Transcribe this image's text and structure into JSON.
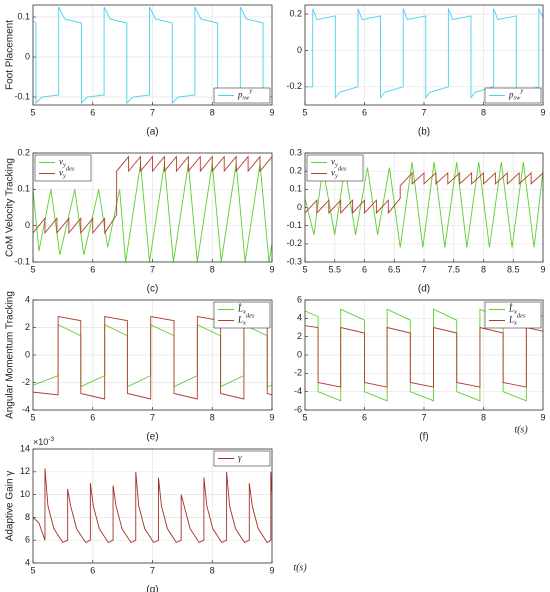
{
  "chart_data": [
    {
      "type": "line",
      "panel_label": "(a)",
      "y_label": "Foot Placement",
      "xlim": [
        5,
        9
      ],
      "ylim": [
        -0.12,
        0.13
      ],
      "xticks": [
        5,
        6,
        7,
        8,
        9
      ],
      "yticks": [
        -0.1,
        0,
        0.1
      ],
      "grid": true,
      "legend": "lower right",
      "series": [
        {
          "name": "p_sw^y",
          "color": "#49d2ee",
          "x": [
            5,
            5.05,
            5.05,
            5.15,
            5.43,
            5.43,
            5.53,
            5.81,
            5.81,
            5.91,
            6.19,
            6.19,
            6.29,
            6.57,
            6.57,
            6.67,
            6.95,
            6.95,
            7.05,
            7.33,
            7.33,
            7.43,
            7.71,
            7.71,
            7.81,
            8.09,
            8.09,
            8.19,
            8.47,
            8.47,
            8.57,
            8.85,
            8.85,
            8.95,
            9
          ],
          "values": [
            0.09,
            0.085,
            -0.115,
            -0.1,
            -0.095,
            0.125,
            0.095,
            0.085,
            -0.115,
            -0.1,
            -0.095,
            0.125,
            0.095,
            0.085,
            -0.115,
            -0.1,
            -0.095,
            0.125,
            0.095,
            0.085,
            -0.115,
            -0.1,
            -0.095,
            0.125,
            0.095,
            0.085,
            -0.115,
            -0.1,
            -0.095,
            0.125,
            0.095,
            0.085,
            -0.115,
            -0.1,
            -0.098
          ]
        }
      ]
    },
    {
      "type": "line",
      "panel_label": "(b)",
      "xlim": [
        5,
        9
      ],
      "ylim": [
        -0.3,
        0.25
      ],
      "xticks": [
        5,
        6,
        7,
        8,
        9
      ],
      "yticks": [
        -0.2,
        0,
        0.2
      ],
      "grid": true,
      "legend": "lower right",
      "series": [
        {
          "name": "p_sw^y",
          "color": "#49d2ee",
          "x": [
            5,
            5.13,
            5.13,
            5.2,
            5.51,
            5.51,
            5.58,
            5.89,
            5.89,
            5.96,
            6.27,
            6.27,
            6.34,
            6.65,
            6.65,
            6.72,
            7.03,
            7.03,
            7.1,
            7.41,
            7.41,
            7.48,
            7.79,
            7.79,
            7.86,
            8.17,
            8.17,
            8.24,
            8.55,
            8.55,
            8.62,
            8.93,
            8.93,
            9
          ],
          "values": [
            -0.2,
            -0.2,
            0.23,
            0.17,
            0.19,
            -0.26,
            -0.23,
            -0.2,
            0.23,
            0.17,
            0.19,
            -0.26,
            -0.23,
            -0.2,
            0.23,
            0.17,
            0.19,
            -0.26,
            -0.23,
            -0.2,
            0.23,
            0.17,
            0.19,
            -0.26,
            -0.23,
            -0.2,
            0.23,
            0.17,
            0.19,
            -0.26,
            -0.23,
            -0.2,
            0.23,
            0.18
          ]
        }
      ]
    },
    {
      "type": "line",
      "panel_label": "(c)",
      "y_label": "CoM Velocity Tracking",
      "xlim": [
        5,
        9
      ],
      "ylim": [
        -0.1,
        0.2
      ],
      "xticks": [
        5,
        6,
        7,
        8,
        9
      ],
      "yticks": [
        -0.1,
        0,
        0.1,
        0.2
      ],
      "grid": true,
      "legend": "upper left",
      "series": [
        {
          "name": "v_y",
          "color": "#5ccf2c",
          "x": [
            5,
            5.1,
            5.3,
            5.45,
            5.7,
            5.85,
            6.1,
            6.25,
            6.45,
            6.55,
            6.8,
            6.95,
            7.2,
            7.35,
            7.6,
            7.75,
            8.0,
            8.15,
            8.4,
            8.55,
            8.8,
            8.95,
            9
          ],
          "values": [
            0.1,
            -0.07,
            0.1,
            -0.08,
            0.1,
            -0.08,
            0.1,
            -0.06,
            0.1,
            -0.1,
            0.17,
            -0.1,
            0.17,
            -0.1,
            0.17,
            -0.1,
            0.17,
            -0.1,
            0.17,
            -0.1,
            0.17,
            -0.1,
            -0.05
          ]
        },
        {
          "name": "v_y^des",
          "color": "#b23b2b",
          "x": [
            5,
            5.2,
            5.2,
            5.4,
            5.4,
            5.6,
            5.6,
            5.8,
            5.8,
            6.0,
            6.0,
            6.2,
            6.2,
            6.4,
            6.4,
            6.6,
            6.6,
            6.8,
            6.8,
            7.0,
            7.0,
            7.2,
            7.2,
            7.4,
            7.4,
            7.6,
            7.6,
            7.8,
            7.8,
            8.0,
            8.0,
            8.2,
            8.2,
            8.4,
            8.4,
            8.6,
            8.6,
            8.8,
            8.8,
            9.0
          ],
          "values": [
            -0.02,
            0.02,
            -0.02,
            0.02,
            -0.02,
            0.02,
            -0.02,
            0.02,
            -0.02,
            0.02,
            -0.02,
            0.02,
            -0.02,
            0.03,
            0.15,
            0.19,
            0.15,
            0.19,
            0.15,
            0.19,
            0.15,
            0.19,
            0.15,
            0.19,
            0.15,
            0.19,
            0.15,
            0.19,
            0.15,
            0.19,
            0.15,
            0.19,
            0.15,
            0.19,
            0.15,
            0.19,
            0.15,
            0.19,
            0.15,
            0.19
          ]
        }
      ]
    },
    {
      "type": "line",
      "panel_label": "(d)",
      "xlim": [
        5,
        9
      ],
      "ylim": [
        -0.3,
        0.3
      ],
      "xticks": [
        5,
        5.5,
        6,
        6.5,
        7,
        7.5,
        8,
        8.5,
        9
      ],
      "yticks": [
        -0.3,
        -0.2,
        -0.1,
        0,
        0.1,
        0.2,
        0.3
      ],
      "grid": true,
      "legend": "upper left",
      "series": [
        {
          "name": "v_y",
          "color": "#5ccf2c",
          "x": [
            5,
            5.15,
            5.3,
            5.5,
            5.67,
            5.85,
            6.05,
            6.22,
            6.42,
            6.6,
            6.8,
            6.98,
            7.17,
            7.35,
            7.55,
            7.72,
            7.92,
            8.1,
            8.3,
            8.48,
            8.67,
            8.85,
            9
          ],
          "values": [
            0.05,
            -0.15,
            0.22,
            -0.15,
            0.22,
            -0.15,
            0.22,
            -0.15,
            0.22,
            -0.22,
            0.25,
            -0.22,
            0.25,
            -0.22,
            0.25,
            -0.22,
            0.25,
            -0.22,
            0.25,
            -0.22,
            0.25,
            -0.22,
            0.2
          ]
        },
        {
          "name": "v_y^des",
          "color": "#b23b2b",
          "x": [
            5,
            5.2,
            5.2,
            5.4,
            5.4,
            5.6,
            5.6,
            5.8,
            5.8,
            6.0,
            6.0,
            6.2,
            6.2,
            6.4,
            6.4,
            6.6,
            6.6,
            6.8,
            6.8,
            7.0,
            7.0,
            7.2,
            7.2,
            7.4,
            7.4,
            7.6,
            7.6,
            7.8,
            7.8,
            8.0,
            8.0,
            8.2,
            8.2,
            8.4,
            8.4,
            8.6,
            8.6,
            8.8,
            8.8,
            9.0
          ],
          "values": [
            -0.03,
            0.04,
            -0.03,
            0.04,
            -0.03,
            0.04,
            -0.03,
            0.04,
            -0.03,
            0.04,
            -0.03,
            0.04,
            -0.03,
            0.04,
            -0.03,
            0.05,
            0.12,
            0.19,
            0.13,
            0.19,
            0.13,
            0.19,
            0.13,
            0.19,
            0.13,
            0.19,
            0.13,
            0.19,
            0.13,
            0.19,
            0.13,
            0.19,
            0.13,
            0.19,
            0.13,
            0.19,
            0.13,
            0.19,
            0.13,
            0.19
          ]
        }
      ]
    },
    {
      "type": "line",
      "panel_label": "(e)",
      "y_label": "Angular Momentum Tracking",
      "xlim": [
        5,
        9
      ],
      "ylim": [
        -4,
        4
      ],
      "xticks": [
        5,
        6,
        7,
        8,
        9
      ],
      "yticks": [
        -4,
        -2,
        0,
        2,
        4
      ],
      "grid": true,
      "legend": "upper right",
      "series": [
        {
          "name": "L̂_x",
          "color": "#5ccf2c",
          "x": [
            5,
            5.42,
            5.42,
            5.8,
            5.8,
            6.2,
            6.2,
            6.58,
            6.58,
            6.97,
            6.97,
            7.36,
            7.36,
            7.75,
            7.75,
            8.14,
            8.14,
            8.53,
            8.53,
            8.92,
            8.92,
            9
          ],
          "values": [
            -2.2,
            -1.5,
            2.2,
            1.4,
            -2.3,
            -1.5,
            2.2,
            1.4,
            -2.3,
            -1.5,
            2.2,
            1.4,
            -2.3,
            -1.5,
            2.2,
            1.4,
            -2.3,
            -1.5,
            2.2,
            1.4,
            -2.3,
            -2.2
          ]
        },
        {
          "name": "L_x^des",
          "color": "#b23b2b",
          "x": [
            5,
            5.42,
            5.42,
            5.8,
            5.8,
            6.2,
            6.2,
            6.58,
            6.58,
            6.97,
            6.97,
            7.36,
            7.36,
            7.75,
            7.75,
            8.14,
            8.14,
            8.53,
            8.53,
            8.92,
            8.92,
            9
          ],
          "values": [
            -2.7,
            -2.9,
            2.8,
            2.5,
            -2.8,
            -3.2,
            2.8,
            2.5,
            -2.8,
            -3.2,
            2.8,
            2.5,
            -2.8,
            -3.2,
            2.8,
            2.5,
            -2.8,
            -3.2,
            2.8,
            2.5,
            -2.8,
            -2.9
          ]
        }
      ]
    },
    {
      "type": "line",
      "panel_label": "(f)",
      "x_label": "t(s)",
      "xlim": [
        5,
        9
      ],
      "ylim": [
        -6,
        6
      ],
      "xticks": [
        5,
        6,
        7,
        8,
        9
      ],
      "yticks": [
        -6,
        -4,
        -2,
        0,
        2,
        4,
        6
      ],
      "grid": true,
      "legend": "upper right",
      "series": [
        {
          "name": "L̂_x",
          "color": "#5ccf2c",
          "x": [
            5,
            5.22,
            5.22,
            5.6,
            5.6,
            6.0,
            6.0,
            6.38,
            6.38,
            6.77,
            6.77,
            7.16,
            7.16,
            7.55,
            7.55,
            7.94,
            7.94,
            8.33,
            8.33,
            8.72,
            8.72,
            9
          ],
          "values": [
            4.8,
            4.2,
            -4.0,
            -5.0,
            5.0,
            3.8,
            -4.0,
            -5.0,
            5.0,
            3.8,
            -4.0,
            -5.0,
            5.0,
            3.8,
            -4.0,
            -5.0,
            5.0,
            3.8,
            -4.0,
            -5.0,
            5.0,
            4.2
          ]
        },
        {
          "name": "L_x^des",
          "color": "#b23b2b",
          "x": [
            5,
            5.22,
            5.22,
            5.6,
            5.6,
            6.0,
            6.0,
            6.38,
            6.38,
            6.77,
            6.77,
            7.16,
            7.16,
            7.55,
            7.55,
            7.94,
            7.94,
            8.33,
            8.33,
            8.72,
            8.72,
            9
          ],
          "values": [
            3.2,
            3.0,
            -3.0,
            -3.5,
            3.0,
            2.4,
            -3.0,
            -3.5,
            3.0,
            2.4,
            -3.0,
            -3.5,
            3.0,
            2.4,
            -3.0,
            -3.5,
            3.0,
            2.4,
            -3.0,
            -3.5,
            3.0,
            2.6
          ]
        }
      ]
    },
    {
      "type": "line",
      "panel_label": "(g)",
      "y_label": "Adaptive Gain γ",
      "x_label": "t(s)",
      "y_offset_label": "×10^-3",
      "xlim": [
        5,
        9
      ],
      "ylim": [
        4,
        14
      ],
      "xticks": [
        5,
        6,
        7,
        8,
        9
      ],
      "yticks": [
        4,
        6,
        8,
        10,
        12,
        14
      ],
      "grid": true,
      "legend": "upper right",
      "series": [
        {
          "name": "γ",
          "color": "#a3302a",
          "x": [
            5,
            5.1,
            5.2,
            5.2,
            5.25,
            5.35,
            5.5,
            5.58,
            5.58,
            5.63,
            5.73,
            5.88,
            5.96,
            5.96,
            6.01,
            6.11,
            6.26,
            6.34,
            6.34,
            6.39,
            6.49,
            6.64,
            6.72,
            6.72,
            6.77,
            6.87,
            7.02,
            7.1,
            7.1,
            7.15,
            7.25,
            7.4,
            7.48,
            7.48,
            7.53,
            7.63,
            7.78,
            7.86,
            7.86,
            7.91,
            8.01,
            8.16,
            8.24,
            8.24,
            8.29,
            8.39,
            8.54,
            8.62,
            8.62,
            8.67,
            8.77,
            8.92,
            8.98,
            8.98,
            9
          ],
          "values": [
            8,
            7.5,
            6,
            12.3,
            9,
            7,
            5.8,
            6,
            10.5,
            9,
            7,
            5.8,
            6,
            11,
            9,
            7,
            5.8,
            6,
            10.8,
            9,
            7,
            5.8,
            6,
            12,
            9,
            7,
            5.8,
            6,
            11.5,
            9,
            7,
            5.8,
            6,
            10,
            9,
            7,
            5.8,
            6,
            11.5,
            9,
            7,
            5.8,
            6,
            12,
            9,
            7,
            5.8,
            6,
            11,
            9,
            7,
            5.8,
            6,
            12,
            10
          ]
        }
      ]
    }
  ]
}
